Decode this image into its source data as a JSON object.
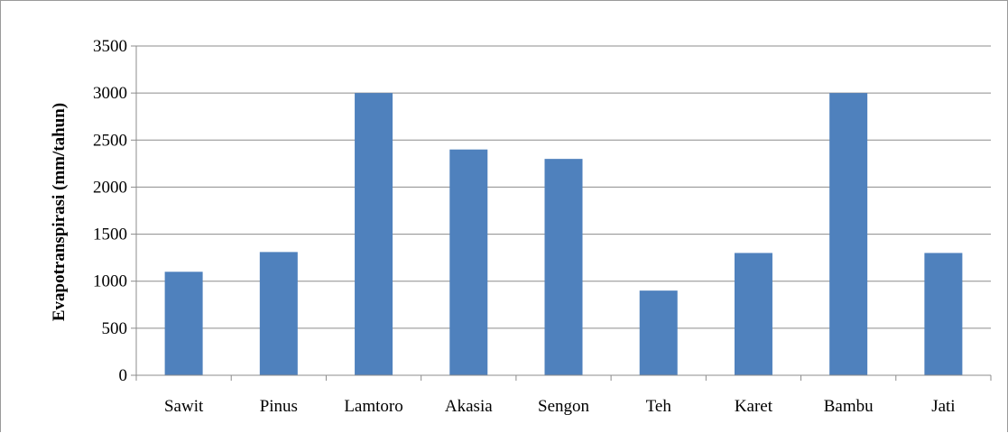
{
  "chart_data": {
    "type": "bar",
    "title": "",
    "xlabel": "",
    "ylabel": "Evapotranspirasi (mm/tahun)",
    "ylim": [
      0,
      3500
    ],
    "yticks": [
      0,
      500,
      1000,
      1500,
      2000,
      2500,
      3000,
      3500
    ],
    "grid": true,
    "legend": "none",
    "bar_color": "#4f81bd",
    "categories": [
      "Sawit",
      "Pinus",
      "Lamtoro",
      "Akasia",
      "Sengon",
      "Teh",
      "Karet",
      "Bambu",
      "Jati"
    ],
    "values": [
      1100,
      1310,
      3000,
      2400,
      2300,
      900,
      1300,
      3000,
      1300
    ]
  }
}
